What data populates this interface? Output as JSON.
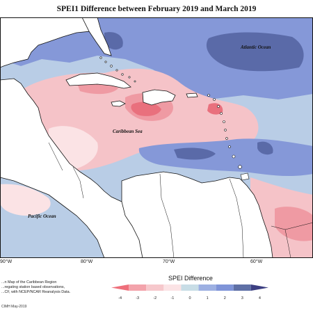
{
  "title": "SPEI1 Difference between February 2019 and March 2019",
  "map_labels": {
    "atlantic": "Atlantic Ocean",
    "caribbean": "Caribbean Sea",
    "pacific": "Pacific Ocean"
  },
  "longitude_ticks": [
    "90°W",
    "80°W",
    "70°W",
    "60°W"
  ],
  "notes": [
    "...n Map of the Caribbean Region",
    "...regating station based observations,",
    "...CF, with NCEP/NCAR Reanalysis Data."
  ],
  "credit": "CIMH May-2019",
  "legend": {
    "title": "SPEI Difference",
    "tick_labels": [
      "-4",
      "-3",
      "-2",
      "-1",
      "0",
      "1",
      "2",
      "3",
      "4"
    ],
    "colors": [
      "#ee6f7b",
      "#f3a3ab",
      "#f6c8cc",
      "#fbe3e5",
      "#c8dde6",
      "#9db0e2",
      "#7f94d8",
      "#5f70a6",
      "#3c3f82"
    ]
  },
  "map_colors": {
    "land": "#ffffff",
    "coast": "#111111",
    "dark_blue": "#5a6aa8",
    "mid_blue": "#8598d8",
    "light_blue": "#b9cde6",
    "pale_pink": "#fbe3e5",
    "light_pink": "#f5c3c8",
    "mid_pink": "#ef9aa3",
    "deep_pink": "#e9707d"
  }
}
